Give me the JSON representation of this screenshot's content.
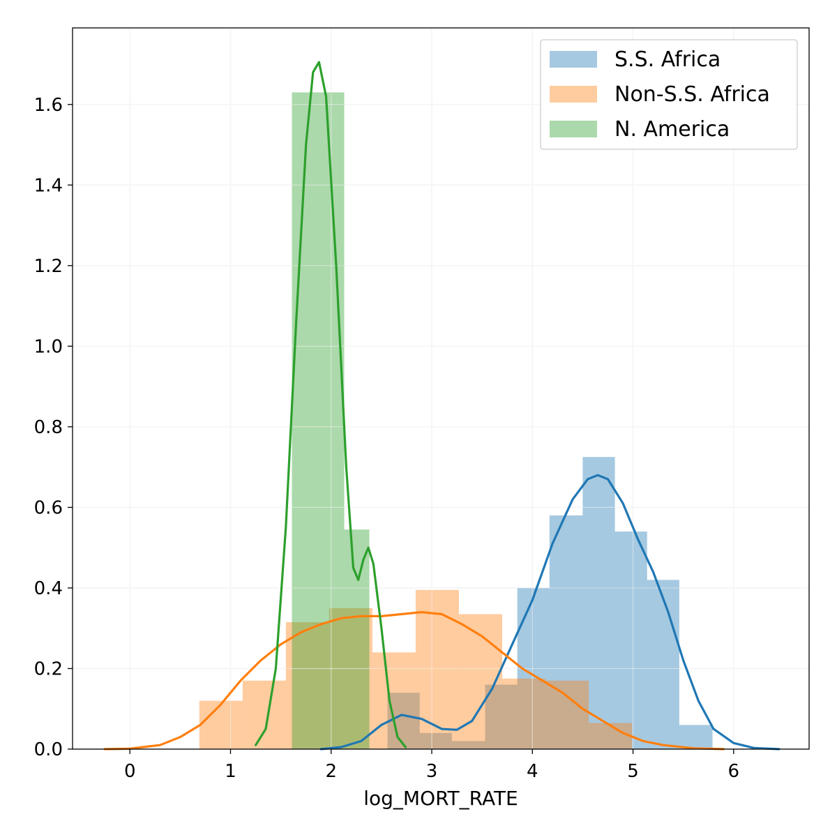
{
  "chart_data": {
    "type": "histogram-kde",
    "title": "",
    "xlabel": "log_MORT_RATE",
    "ylabel": "",
    "xlim": [
      -0.57,
      6.75
    ],
    "ylim": [
      0.0,
      1.79
    ],
    "xticks": [
      0,
      1,
      2,
      3,
      4,
      5,
      6
    ],
    "xtick_labels": [
      "0",
      "1",
      "2",
      "3",
      "4",
      "5",
      "6"
    ],
    "yticks": [
      0.0,
      0.2,
      0.4,
      0.6,
      0.8,
      1.0,
      1.2,
      1.4,
      1.6
    ],
    "ytick_labels": [
      "0.0",
      "0.2",
      "0.4",
      "0.6",
      "0.8",
      "1.0",
      "1.2",
      "1.4",
      "1.6"
    ],
    "grid": true,
    "legend_position": "top-right",
    "series": [
      {
        "name": "S.S. Africa",
        "hist_color": "#1f77b4",
        "line_color": "#1f77b4",
        "bins": [
          {
            "x0": 2.56,
            "x1": 2.88,
            "density": 0.14
          },
          {
            "x0": 2.88,
            "x1": 3.2,
            "density": 0.04
          },
          {
            "x0": 3.2,
            "x1": 3.53,
            "density": 0.02
          },
          {
            "x0": 3.53,
            "x1": 3.85,
            "density": 0.16
          },
          {
            "x0": 3.85,
            "x1": 4.17,
            "density": 0.4
          },
          {
            "x0": 4.17,
            "x1": 4.5,
            "density": 0.58
          },
          {
            "x0": 4.5,
            "x1": 4.82,
            "density": 0.725
          },
          {
            "x0": 4.82,
            "x1": 5.14,
            "density": 0.54
          },
          {
            "x0": 5.14,
            "x1": 5.46,
            "density": 0.42
          },
          {
            "x0": 5.46,
            "x1": 5.79,
            "density": 0.06
          }
        ],
        "kde": [
          [
            1.9,
            0.0
          ],
          [
            2.1,
            0.005
          ],
          [
            2.3,
            0.02
          ],
          [
            2.5,
            0.06
          ],
          [
            2.7,
            0.085
          ],
          [
            2.9,
            0.075
          ],
          [
            3.1,
            0.05
          ],
          [
            3.25,
            0.048
          ],
          [
            3.4,
            0.07
          ],
          [
            3.6,
            0.15
          ],
          [
            3.8,
            0.26
          ],
          [
            4.0,
            0.37
          ],
          [
            4.2,
            0.51
          ],
          [
            4.4,
            0.62
          ],
          [
            4.55,
            0.67
          ],
          [
            4.65,
            0.68
          ],
          [
            4.75,
            0.67
          ],
          [
            4.9,
            0.61
          ],
          [
            5.05,
            0.52
          ],
          [
            5.2,
            0.44
          ],
          [
            5.35,
            0.34
          ],
          [
            5.5,
            0.22
          ],
          [
            5.65,
            0.12
          ],
          [
            5.8,
            0.05
          ],
          [
            6.0,
            0.015
          ],
          [
            6.2,
            0.003
          ],
          [
            6.45,
            0.0
          ]
        ]
      },
      {
        "name": "Non-S.S. Africa",
        "hist_color": "#ff7f0e",
        "line_color": "#ff7f0e",
        "bins": [
          {
            "x0": 0.69,
            "x1": 1.12,
            "density": 0.12
          },
          {
            "x0": 1.12,
            "x1": 1.55,
            "density": 0.17
          },
          {
            "x0": 1.55,
            "x1": 1.98,
            "density": 0.315
          },
          {
            "x0": 1.98,
            "x1": 2.41,
            "density": 0.35
          },
          {
            "x0": 2.41,
            "x1": 2.84,
            "density": 0.24
          },
          {
            "x0": 2.84,
            "x1": 3.27,
            "density": 0.395
          },
          {
            "x0": 3.27,
            "x1": 3.7,
            "density": 0.335
          },
          {
            "x0": 3.7,
            "x1": 4.13,
            "density": 0.175
          },
          {
            "x0": 4.13,
            "x1": 4.56,
            "density": 0.17
          },
          {
            "x0": 4.56,
            "x1": 4.99,
            "density": 0.065
          },
          {
            "x0": 4.99,
            "x1": 5.42,
            "density": 0.0
          }
        ],
        "kde": [
          [
            -0.25,
            0.0
          ],
          [
            0.0,
            0.001
          ],
          [
            0.3,
            0.01
          ],
          [
            0.5,
            0.03
          ],
          [
            0.7,
            0.06
          ],
          [
            0.9,
            0.11
          ],
          [
            1.1,
            0.17
          ],
          [
            1.3,
            0.22
          ],
          [
            1.5,
            0.26
          ],
          [
            1.7,
            0.29
          ],
          [
            1.9,
            0.31
          ],
          [
            2.1,
            0.325
          ],
          [
            2.3,
            0.33
          ],
          [
            2.5,
            0.33
          ],
          [
            2.7,
            0.335
          ],
          [
            2.9,
            0.34
          ],
          [
            3.1,
            0.335
          ],
          [
            3.3,
            0.31
          ],
          [
            3.5,
            0.28
          ],
          [
            3.7,
            0.24
          ],
          [
            3.9,
            0.2
          ],
          [
            4.1,
            0.17
          ],
          [
            4.3,
            0.14
          ],
          [
            4.5,
            0.1
          ],
          [
            4.7,
            0.07
          ],
          [
            4.9,
            0.04
          ],
          [
            5.1,
            0.02
          ],
          [
            5.3,
            0.01
          ],
          [
            5.6,
            0.002
          ],
          [
            5.9,
            0.0
          ]
        ]
      },
      {
        "name": "N. America",
        "hist_color": "#2ca02c",
        "line_color": "#2ca02c",
        "bins": [
          {
            "x0": 1.61,
            "x1": 2.13,
            "density": 1.63
          },
          {
            "x0": 2.13,
            "x1": 2.38,
            "density": 0.545
          }
        ],
        "kde": [
          [
            1.25,
            0.01
          ],
          [
            1.35,
            0.05
          ],
          [
            1.45,
            0.2
          ],
          [
            1.55,
            0.55
          ],
          [
            1.65,
            1.05
          ],
          [
            1.75,
            1.5
          ],
          [
            1.82,
            1.68
          ],
          [
            1.88,
            1.705
          ],
          [
            1.95,
            1.62
          ],
          [
            2.05,
            1.2
          ],
          [
            2.15,
            0.7
          ],
          [
            2.22,
            0.45
          ],
          [
            2.27,
            0.42
          ],
          [
            2.32,
            0.47
          ],
          [
            2.37,
            0.5
          ],
          [
            2.42,
            0.46
          ],
          [
            2.5,
            0.3
          ],
          [
            2.58,
            0.12
          ],
          [
            2.66,
            0.03
          ],
          [
            2.74,
            0.005
          ]
        ]
      }
    ]
  }
}
